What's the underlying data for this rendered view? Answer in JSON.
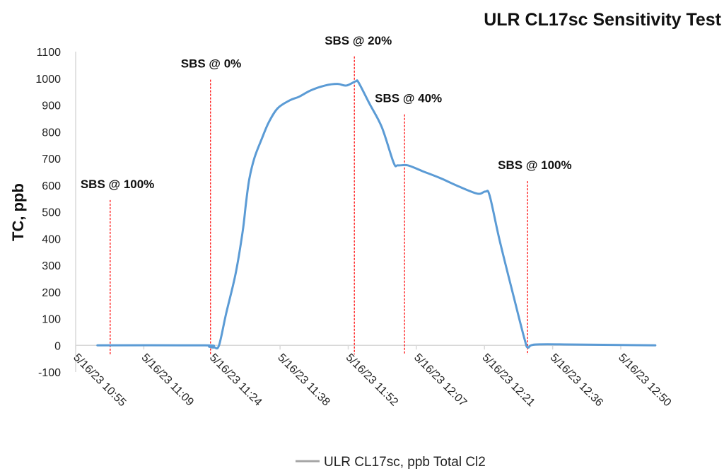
{
  "chart_data": {
    "type": "line",
    "title": "ULR CL17sc Sensitivity Test",
    "xlabel": "",
    "ylabel": "TC, ppb",
    "ylim": [
      -100,
      1100
    ],
    "yticks": [
      -100,
      0,
      100,
      200,
      300,
      400,
      500,
      600,
      700,
      800,
      900,
      1000,
      1100
    ],
    "x_units": "minutes after 5/16/23 10:55",
    "xlim": [
      0,
      115.2
    ],
    "xticks": [
      {
        "x": 0,
        "label": "5/16/23 10:55"
      },
      {
        "x": 14.4,
        "label": "5/16/23 11:09"
      },
      {
        "x": 28.8,
        "label": "5/16/23 11:24"
      },
      {
        "x": 43.2,
        "label": "5/16/23 11:38"
      },
      {
        "x": 57.6,
        "label": "5/16/23 11:52"
      },
      {
        "x": 72.0,
        "label": "5/16/23 12:07"
      },
      {
        "x": 86.4,
        "label": "5/16/23 12:21"
      },
      {
        "x": 100.8,
        "label": "5/16/23 12:36"
      },
      {
        "x": 115.2,
        "label": "5/16/23 12:50"
      }
    ],
    "grid": false,
    "legend_position": "bottom",
    "series": [
      {
        "name": "ULR CL17sc, ppb Total Cl2",
        "color": "#5b9bd5",
        "legend_color": "#a6a6a6",
        "x": [
          4.6,
          27.3,
          28.2,
          29.3,
          30.3,
          31.8,
          33.8,
          35.3,
          36.0,
          36.7,
          37.8,
          39.3,
          40.8,
          42.7,
          45.3,
          47.2,
          49.7,
          52.7,
          55.3,
          57.2,
          59.2,
          59.8,
          62.1,
          64.7,
          67.2,
          68.1,
          70.2,
          73.2,
          77.1,
          80.7,
          84.9,
          86.6,
          87.5,
          89.6,
          92.6,
          94.9,
          95.6,
          97.1,
          105.5,
          122.5
        ],
        "y": [
          0,
          0,
          -5,
          -8,
          0,
          119,
          268,
          427,
          533,
          623,
          703,
          772,
          835,
          888,
          918,
          931,
          955,
          973,
          979,
          973,
          989,
          984,
          905,
          817,
          684,
          674,
          674,
          653,
          626,
          597,
          568,
          576,
          560,
          393,
          180,
          21,
          -8,
          3,
          3,
          0
        ]
      }
    ],
    "annotations": [
      {
        "text": "SBS @ 100%",
        "x": 7.3,
        "line_top": 544
      },
      {
        "text": "SBS @ 0%",
        "x": 28.5,
        "line_top": 995
      },
      {
        "text": "SBS @ 20%",
        "x": 58.9,
        "line_top": 1082
      },
      {
        "text": "SBS @ 40%",
        "x": 69.5,
        "line_top": 865
      },
      {
        "text": "SBS @ 100%",
        "x": 95.5,
        "line_top": 615
      }
    ],
    "marker_color": "#ff0000"
  }
}
